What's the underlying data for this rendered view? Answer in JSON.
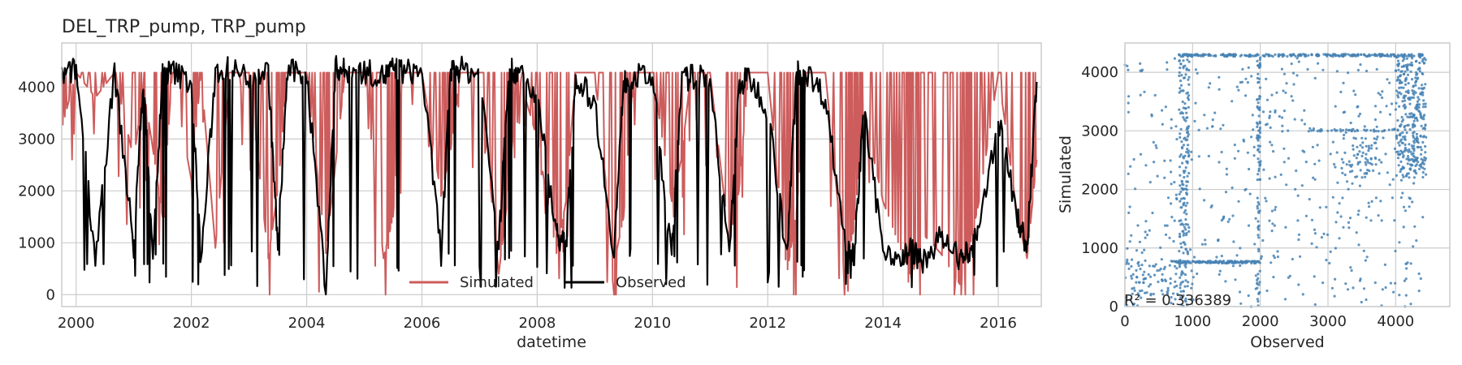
{
  "colors": {
    "simulated": "#cd5c5c",
    "observed": "#000000",
    "scatter": "#4682b4",
    "grid": "#cccccc",
    "frame": "#cccccc"
  },
  "chart_data": [
    {
      "type": "line",
      "title": "DEL_TRP_pump, TRP_pump",
      "xlabel": "datetime",
      "ylabel": "",
      "x_ticks": [
        "2000",
        "2002",
        "2004",
        "2006",
        "2008",
        "2010",
        "2012",
        "2014",
        "2016"
      ],
      "y_ticks": [
        "0",
        "1000",
        "2000",
        "3000",
        "4000"
      ],
      "xlim": [
        "1999-10-01",
        "2016-09-30"
      ],
      "ylim": [
        -230,
        4850
      ],
      "grid": true,
      "legend": "bottom-center",
      "series": [
        {
          "name": "Simulated",
          "color": "#cd5c5c",
          "x": [
            "1999-10",
            "2000-01",
            "2000-05",
            "2000-09",
            "2001-01",
            "2001-03",
            "2001-05",
            "2001-07",
            "2001-09",
            "2002-01",
            "2002-03",
            "2002-06",
            "2002-09",
            "2003-01",
            "2003-05",
            "2003-07",
            "2003-09",
            "2004-01",
            "2004-05",
            "2004-07",
            "2004-09",
            "2005-01",
            "2005-05",
            "2005-07",
            "2005-09",
            "2006-01",
            "2006-05",
            "2006-07",
            "2006-09",
            "2007-01",
            "2007-05",
            "2007-07",
            "2007-09",
            "2008-01",
            "2008-05",
            "2008-07",
            "2008-09",
            "2009-01",
            "2009-05",
            "2009-07",
            "2009-09",
            "2010-01",
            "2010-05",
            "2010-07",
            "2010-09",
            "2011-01",
            "2011-05",
            "2011-07",
            "2011-09",
            "2012-01",
            "2012-05",
            "2012-07",
            "2012-09",
            "2013-01",
            "2013-05",
            "2013-07",
            "2013-09",
            "2014-01",
            "2014-05",
            "2014-07",
            "2014-09",
            "2015-01",
            "2015-05",
            "2015-07",
            "2015-09",
            "2016-01",
            "2016-05",
            "2016-07",
            "2016-09"
          ],
          "y": [
            3200,
            4280,
            3800,
            4280,
            2600,
            4000,
            2800,
            1500,
            4280,
            2200,
            4280,
            900,
            4280,
            4280,
            700,
            2000,
            4280,
            4280,
            800,
            2500,
            4280,
            4280,
            700,
            1500,
            4280,
            4280,
            1900,
            2800,
            4280,
            4280,
            400,
            2000,
            4280,
            3000,
            800,
            1800,
            4280,
            4280,
            600,
            1500,
            4280,
            4280,
            1800,
            2600,
            4280,
            4280,
            1000,
            2000,
            4280,
            4280,
            400,
            1600,
            4280,
            4280,
            400,
            1300,
            3500,
            1800,
            800,
            300,
            1200,
            800,
            200,
            900,
            1800,
            4280,
            1500,
            700,
            2600
          ]
        },
        {
          "name": "Observed",
          "color": "#000000",
          "x": [
            "1999-10",
            "2000-01",
            "2000-05",
            "2000-09",
            "2001-01",
            "2001-03",
            "2001-05",
            "2001-07",
            "2001-09",
            "2002-01",
            "2002-03",
            "2002-06",
            "2002-09",
            "2003-01",
            "2003-05",
            "2003-07",
            "2003-09",
            "2004-01",
            "2004-05",
            "2004-07",
            "2004-09",
            "2005-01",
            "2005-05",
            "2005-07",
            "2005-09",
            "2006-01",
            "2006-05",
            "2006-07",
            "2006-09",
            "2007-01",
            "2007-05",
            "2007-07",
            "2007-09",
            "2008-01",
            "2008-05",
            "2008-07",
            "2008-09",
            "2009-01",
            "2009-05",
            "2009-07",
            "2009-09",
            "2010-01",
            "2010-05",
            "2010-07",
            "2010-09",
            "2011-01",
            "2011-05",
            "2011-07",
            "2011-09",
            "2012-01",
            "2012-05",
            "2012-07",
            "2012-09",
            "2013-01",
            "2013-05",
            "2013-07",
            "2013-09",
            "2014-01",
            "2014-05",
            "2014-07",
            "2014-09",
            "2015-01",
            "2015-05",
            "2015-07",
            "2015-09",
            "2016-01",
            "2016-05",
            "2016-07",
            "2016-09"
          ],
          "y": [
            4200,
            4350,
            700,
            4300,
            900,
            4200,
            800,
            4250,
            4300,
            4100,
            600,
            4300,
            4350,
            4200,
            4300,
            900,
            4300,
            4250,
            100,
            4400,
            4300,
            4300,
            4200,
            4350,
            4300,
            4300,
            800,
            4300,
            4350,
            4250,
            900,
            4300,
            4300,
            3800,
            1200,
            900,
            4200,
            3700,
            800,
            4100,
            4200,
            4200,
            700,
            4100,
            4200,
            4200,
            700,
            4000,
            4200,
            3600,
            700,
            4300,
            4300,
            3800,
            1100,
            800,
            3500,
            900,
            700,
            900,
            600,
            1100,
            700,
            800,
            1200,
            3400,
            1500,
            900,
            4100
          ]
        }
      ]
    },
    {
      "type": "scatter",
      "title": "",
      "xlabel": "Observed",
      "ylabel": "Simulated",
      "x_ticks": [
        "0",
        "1000",
        "2000",
        "3000",
        "4000"
      ],
      "y_ticks": [
        "0",
        "1000",
        "2000",
        "3000",
        "4000"
      ],
      "xlim": [
        0,
        4800
      ],
      "ylim": [
        0,
        4500
      ],
      "grid": true,
      "annotation": "R² = 0.336389",
      "r_squared": 0.336389,
      "clusters": [
        {
          "x_range": [
            800,
            4400
          ],
          "y_range": [
            4270,
            4310
          ],
          "count": 260
        },
        {
          "x_range": [
            800,
            950
          ],
          "y_range": [
            0,
            4300
          ],
          "count": 180
        },
        {
          "x_range": [
            700,
            2000
          ],
          "y_range": [
            740,
            780
          ],
          "count": 140
        },
        {
          "x_range": [
            1950,
            2000
          ],
          "y_range": [
            0,
            4300
          ],
          "count": 90
        },
        {
          "x_range": [
            4000,
            4450
          ],
          "y_range": [
            2200,
            4300
          ],
          "count": 320
        },
        {
          "x_range": [
            3200,
            3800
          ],
          "y_range": [
            2200,
            2900
          ],
          "count": 60
        },
        {
          "x_range": [
            2700,
            4000
          ],
          "y_range": [
            2990,
            3030
          ],
          "count": 40
        },
        {
          "x_range": [
            0,
            4400
          ],
          "y_range": [
            0,
            4300
          ],
          "count": 500
        },
        {
          "x_range": [
            0,
            800
          ],
          "y_range": [
            0,
            800
          ],
          "count": 80
        }
      ]
    }
  ]
}
